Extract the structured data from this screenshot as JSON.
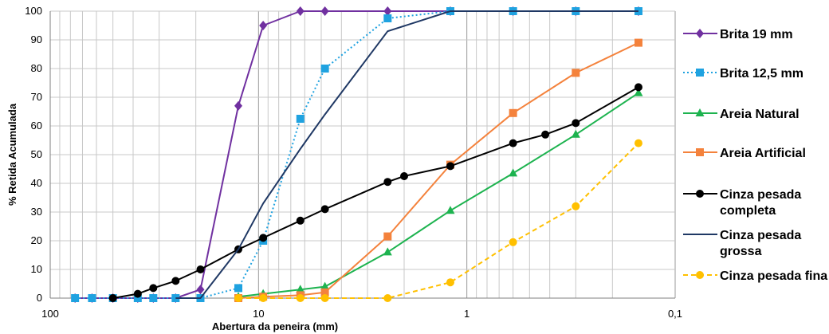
{
  "chart_data": {
    "type": "line",
    "xlabel": "Abertura da peneira (mm)",
    "ylabel": "% Retida Acumulada",
    "x_scale": "log",
    "x_reversed": true,
    "xlim": [
      100,
      0.1
    ],
    "ylim": [
      0,
      100
    ],
    "x_ticks": [
      "100",
      "10",
      "1",
      "0,1"
    ],
    "y_ticks": [
      "0",
      "10",
      "20",
      "30",
      "40",
      "50",
      "60",
      "70",
      "80",
      "90",
      "100"
    ],
    "grid": true,
    "legend_position": "right",
    "series": [
      {
        "name": "Brita 19 mm",
        "color": "#7030a0",
        "dash": "solid",
        "marker": "diamond",
        "x": [
          76,
          63,
          50,
          38,
          32,
          25,
          19,
          12.5,
          9.5,
          6.3,
          4.8,
          2.4,
          1.2,
          0.6,
          0.3,
          0.15
        ],
        "y": [
          0,
          0,
          0,
          0,
          0,
          0,
          3,
          67,
          95,
          100,
          100,
          100,
          100,
          100,
          100,
          100
        ]
      },
      {
        "name": "Brita 12,5 mm",
        "color": "#1fa2e0",
        "dash": "dotted",
        "marker": "square",
        "x": [
          76,
          63,
          50,
          38,
          32,
          25,
          19,
          12.5,
          9.5,
          6.3,
          4.8,
          2.4,
          1.2,
          0.6,
          0.3,
          0.15
        ],
        "y": [
          0,
          0,
          0,
          0,
          0,
          0,
          0,
          3.5,
          20,
          62.5,
          80,
          97.5,
          100,
          100,
          100,
          100
        ]
      },
      {
        "name": "Areia Natural",
        "color": "#1db34f",
        "dash": "solid",
        "marker": "triangle",
        "x": [
          12.5,
          9.5,
          6.3,
          4.8,
          2.4,
          1.2,
          0.6,
          0.3,
          0.15
        ],
        "y": [
          0.5,
          1.5,
          3,
          4,
          16,
          30.5,
          43.5,
          57,
          71.5
        ]
      },
      {
        "name": "Areia Artificial",
        "color": "#f4823c",
        "dash": "solid",
        "marker": "square",
        "x": [
          12.5,
          9.5,
          6.3,
          4.8,
          2.4,
          1.2,
          0.6,
          0.3,
          0.15
        ],
        "y": [
          0,
          0.5,
          1,
          2,
          21.5,
          46.5,
          64.5,
          78.5,
          89
        ]
      },
      {
        "name": "Cinza pesada completa",
        "color": "#000000",
        "dash": "solid",
        "marker": "circle",
        "x": [
          50,
          38,
          32,
          25,
          19,
          12.5,
          9.5,
          6.3,
          4.8,
          2.4,
          2.0,
          1.2,
          0.6,
          0.42,
          0.3,
          0.15
        ],
        "y": [
          0,
          1.5,
          3.5,
          6,
          10,
          17,
          21,
          27,
          31,
          40.5,
          42.5,
          46,
          54,
          57,
          61,
          73.5
        ]
      },
      {
        "name": "Cinza pesada grossa",
        "color": "#1f3864",
        "dash": "solid",
        "marker": "none",
        "x": [
          25,
          19,
          12.5,
          9.5,
          6.3,
          4.8,
          2.4,
          1.2,
          0.6,
          0.3,
          0.15
        ],
        "y": [
          0,
          0,
          17,
          33,
          52,
          64,
          93,
          100,
          100,
          100,
          100
        ]
      },
      {
        "name": "Cinza pesada fina",
        "color": "#ffc000",
        "dash": "dashed",
        "marker": "circle",
        "x": [
          12.5,
          9.5,
          6.3,
          4.8,
          2.4,
          1.2,
          0.6,
          0.3,
          0.15
        ],
        "y": [
          0,
          0,
          0,
          0,
          0,
          5.5,
          19.5,
          32,
          54
        ]
      }
    ]
  }
}
